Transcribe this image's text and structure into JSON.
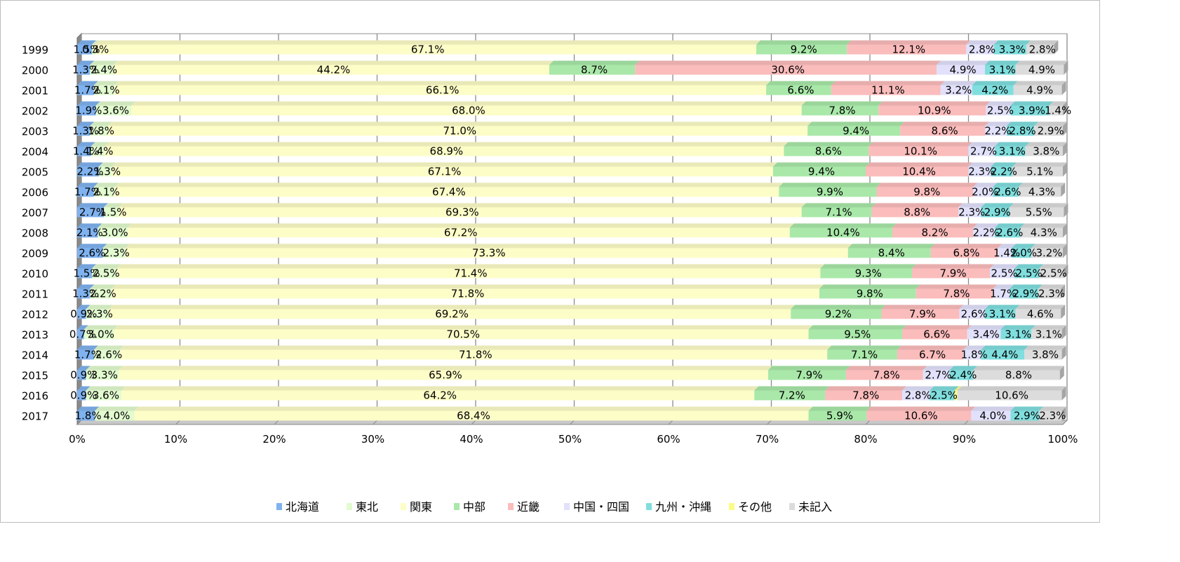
{
  "chart_data": {
    "type": "bar",
    "orientation": "horizontal",
    "stacked": true,
    "percent_stacked": true,
    "grid": true,
    "legend_position": "bottom",
    "xlim": [
      0,
      100
    ],
    "x_tick_labels": [
      "0%",
      "10%",
      "20%",
      "30%",
      "40%",
      "50%",
      "60%",
      "70%",
      "80%",
      "90%",
      "100%"
    ],
    "categories": [
      "1999",
      "2000",
      "2001",
      "2002",
      "2003",
      "2004",
      "2005",
      "2006",
      "2007",
      "2008",
      "2009",
      "2010",
      "2011",
      "2012",
      "2013",
      "2014",
      "2015",
      "2016",
      "2017"
    ],
    "series": [
      {
        "name": "北海道",
        "color": "#7fb2ef",
        "values": [
          1.5,
          1.3,
          1.7,
          1.9,
          1.3,
          1.4,
          2.2,
          1.7,
          2.7,
          2.1,
          2.6,
          1.5,
          1.3,
          0.9,
          0.7,
          1.7,
          0.9,
          0.9,
          1.8
        ]
      },
      {
        "name": "東北",
        "color": "#e2fbcf",
        "values": [
          0.3,
          2.4,
          2.1,
          3.6,
          1.8,
          1.4,
          1.3,
          2.1,
          1.5,
          3.0,
          2.3,
          2.5,
          2.2,
          2.3,
          3.0,
          2.6,
          3.3,
          3.6,
          4.0
        ]
      },
      {
        "name": "関東",
        "color": "#fdfdc8",
        "values": [
          67.1,
          44.2,
          66.1,
          68.0,
          71.0,
          68.9,
          67.1,
          67.4,
          69.3,
          67.2,
          73.3,
          71.4,
          71.8,
          69.2,
          70.5,
          71.8,
          65.9,
          64.2,
          68.4
        ]
      },
      {
        "name": "中部",
        "color": "#a9e8a9",
        "values": [
          9.2,
          8.7,
          6.6,
          7.8,
          9.4,
          8.6,
          9.4,
          9.9,
          7.1,
          10.4,
          8.4,
          9.3,
          9.8,
          9.2,
          9.5,
          7.1,
          7.9,
          7.2,
          5.9
        ]
      },
      {
        "name": "近畿",
        "color": "#fbbcbc",
        "values": [
          12.1,
          30.6,
          11.1,
          10.9,
          8.6,
          10.1,
          10.4,
          9.8,
          8.8,
          8.2,
          6.8,
          7.9,
          7.8,
          7.9,
          6.6,
          6.7,
          7.8,
          7.8,
          10.6
        ]
      },
      {
        "name": "中国・四国",
        "color": "#e1e1fb",
        "values": [
          2.8,
          4.9,
          3.2,
          2.5,
          2.2,
          2.7,
          2.3,
          2.0,
          2.3,
          2.2,
          1.4,
          2.5,
          1.7,
          2.6,
          3.4,
          1.8,
          2.7,
          2.8,
          4.0
        ]
      },
      {
        "name": "九州・沖縄",
        "color": "#80dede",
        "values": [
          3.3,
          3.1,
          4.2,
          3.9,
          2.8,
          3.1,
          2.2,
          2.6,
          2.9,
          2.6,
          2.0,
          2.5,
          2.9,
          3.1,
          3.1,
          4.4,
          2.4,
          2.5,
          2.9
        ]
      },
      {
        "name": "その他",
        "color": "#fbfb88",
        "values": [
          0.0,
          0.0,
          0.0,
          0.0,
          0.0,
          0.0,
          0.0,
          0.0,
          0.0,
          0.0,
          0.0,
          0.0,
          0.0,
          0.0,
          0.0,
          0.0,
          0.0,
          0.3,
          0.0
        ]
      },
      {
        "name": "未記入",
        "color": "#dcdcdc",
        "values": [
          2.8,
          4.9,
          4.9,
          1.4,
          2.9,
          3.8,
          5.1,
          4.3,
          5.5,
          4.3,
          3.2,
          2.5,
          2.3,
          4.6,
          3.1,
          3.8,
          8.8,
          10.6,
          2.3
        ]
      }
    ],
    "data_labels": [
      [
        "1.5%",
        "0.3%",
        "67.1%",
        "9.2%",
        "12.1%",
        "2.8%",
        "3.3%",
        "",
        "2.8%"
      ],
      [
        "1.3%",
        "2.4%",
        "44.2%",
        "8.7%",
        "30.6%",
        "4.9%",
        "3.1%",
        "",
        "4.9%"
      ],
      [
        "1.7%",
        "2.1%",
        "66.1%",
        "6.6%",
        "11.1%",
        "3.2%",
        "4.2%",
        "",
        "4.9%"
      ],
      [
        "1.9%",
        "3.6%",
        "68.0%",
        "7.8%",
        "10.9%",
        "2.5%",
        "3.9%",
        "",
        "1.4%"
      ],
      [
        "1.3%",
        "1.8%",
        "71.0%",
        "9.4%",
        "8.6%",
        "2.2%",
        "2.8%",
        "",
        "2.9%"
      ],
      [
        "1.4%",
        "1.4%",
        "68.9%",
        "8.6%",
        "10.1%",
        "2.7%",
        "3.1%",
        "",
        "3.8%"
      ],
      [
        "2.2%",
        "1.3%",
        "67.1%",
        "9.4%",
        "10.4%",
        "2.3%",
        "2.2%",
        "",
        "5.1%"
      ],
      [
        "1.7%",
        "2.1%",
        "67.4%",
        "9.9%",
        "9.8%",
        "2.0%",
        "2.6%",
        "",
        "4.3%"
      ],
      [
        "2.7%",
        "1.5%",
        "69.3%",
        "7.1%",
        "8.8%",
        "2.3%",
        "2.9%",
        "",
        "5.5%"
      ],
      [
        "2.1%",
        "3.0%",
        "67.2%",
        "10.4%",
        "8.2%",
        "2.2%",
        "2.6%",
        "",
        "4.3%"
      ],
      [
        "2.6%",
        "2.3%",
        "73.3%",
        "8.4%",
        "6.8%",
        "1.4%",
        "2.0%",
        "",
        "3.2%"
      ],
      [
        "1.5%",
        "2.5%",
        "71.4%",
        "9.3%",
        "7.9%",
        "2.5%",
        "2.5%",
        "",
        "2.5%"
      ],
      [
        "1.3%",
        "2.2%",
        "71.8%",
        "9.8%",
        "7.8%",
        "1.7%",
        "2.9%",
        "",
        "2.3%"
      ],
      [
        "0.9%",
        "2.3%",
        "69.2%",
        "9.2%",
        "7.9%",
        "2.6%",
        "3.1%",
        "",
        "4.6%"
      ],
      [
        "0.7%",
        "3.0%",
        "70.5%",
        "9.5%",
        "6.6%",
        "3.4%",
        "3.1%",
        "",
        "3.1%"
      ],
      [
        "1.7%",
        "2.6%",
        "71.8%",
        "7.1%",
        "6.7%",
        "1.8%",
        "4.4%",
        "",
        "3.8%"
      ],
      [
        "0.9%",
        "3.3%",
        "65.9%",
        "7.9%",
        "7.8%",
        "2.7%",
        "2.4%",
        "",
        "8.8%"
      ],
      [
        "0.9%",
        "3.6%",
        "64.2%",
        "7.2%",
        "7.8%",
        "2.8%",
        "2.5%",
        "",
        "10.6%"
      ],
      [
        "1.8%",
        "4.0%",
        "68.4%",
        "5.9%",
        "10.6%",
        "4.0%",
        "2.9%",
        "",
        "2.3%"
      ]
    ]
  }
}
